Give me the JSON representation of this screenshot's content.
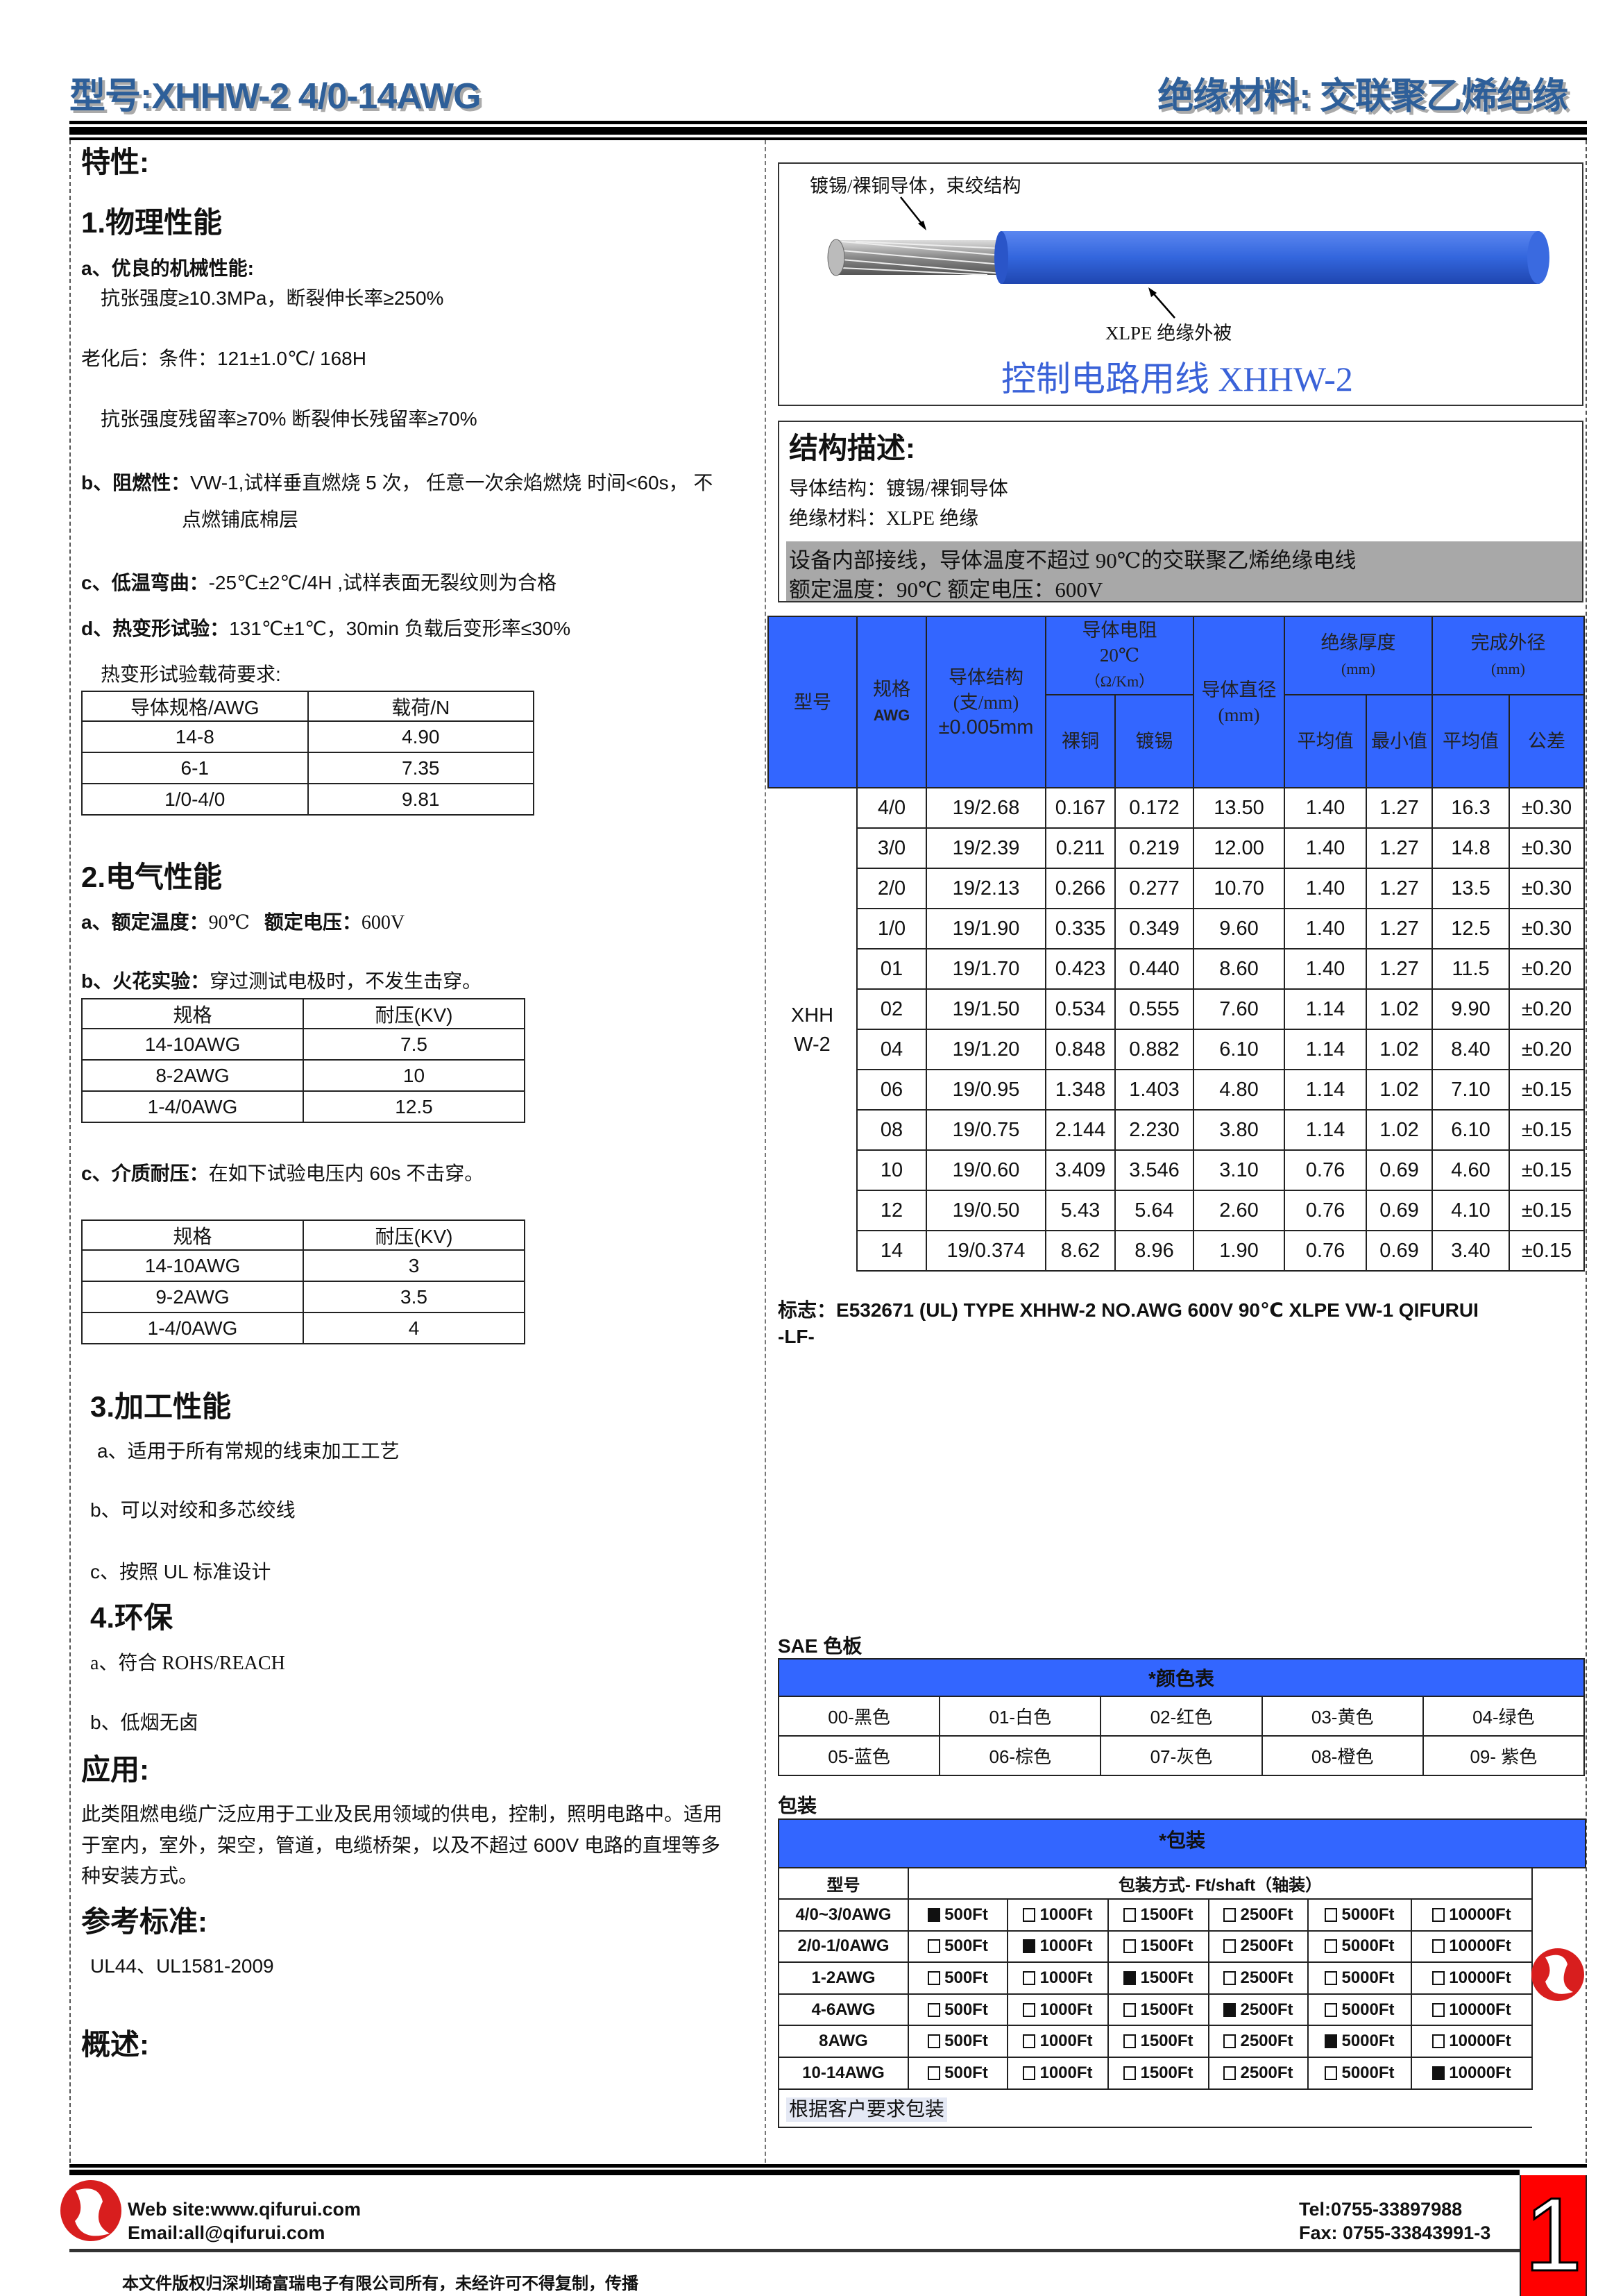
{
  "header": {
    "model": "型号:XHHW-2  4/0-14AWG",
    "material": "绝缘材料: 交联聚乙烯绝缘"
  },
  "left": {
    "features": "特性:",
    "s1": "1.物理性能",
    "s1a": "a、优良的机械性能:",
    "s1a1": "抗张强度≥10.3MPa，断裂伸长率≥250%",
    "s1a2": "老化后：条件：121±1.0℃/ 168H",
    "s1a3": "抗张强度残留率≥70%  断裂伸长残留率≥70%",
    "s1b_label": "b、阻燃性：",
    "s1b": "VW-1,试样垂直燃烧 5 次，  任意一次余焰燃烧  时间<60s，  不",
    "s1b2": "点燃铺底棉层",
    "s1c_label": "c、低温弯曲：",
    "s1c": "-25℃±2℃/4H ,试样表面无裂纹则为合格",
    "s1d_label": "d、热变形试验：",
    "s1d": "131℃±1℃，30min 负载后变形率≤30%",
    "s1d_req": "热变形试验载荷要求:",
    "heat_table": {
      "headers": [
        "导体规格/AWG",
        "载荷/N"
      ],
      "rows": [
        [
          "14-8",
          "4.90"
        ],
        [
          "6-1",
          "7.35"
        ],
        [
          "1/0-4/0",
          "9.81"
        ]
      ]
    },
    "s2": "2.电气性能",
    "s2a_label": "a、额定温度：",
    "s2a_val": "90℃",
    "s2a_label2": "额定电压：",
    "s2a_val2": "600V",
    "s2b_label": "b、火花实验：",
    "s2b": "穿过测试电极时，不发生击穿。",
    "spark_table": {
      "headers": [
        "规格",
        "耐压(KV)"
      ],
      "rows": [
        [
          "14-10AWG",
          "7.5"
        ],
        [
          "8-2AWG",
          "10"
        ],
        [
          "1-4/0AWG",
          "12.5"
        ]
      ]
    },
    "s2c_label": "c、介质耐压：",
    "s2c": "在如下试验电压内 60s 不击穿。",
    "diel_table": {
      "headers": [
        "规格",
        "耐压(KV)"
      ],
      "rows": [
        [
          "14-10AWG",
          "3"
        ],
        [
          "9-2AWG",
          "3.5"
        ],
        [
          "1-4/0AWG",
          "4"
        ]
      ]
    },
    "s3": "3.加工性能",
    "s3a": "a、适用于所有常规的线束加工工艺",
    "s3b": "b、可以对绞和多芯绞线",
    "s3c": "c、按照 UL 标准设计",
    "s4": "4.环保",
    "s4a": "a、符合 ROHS/REACH",
    "s4b": "b、低烟无卤",
    "app": "应用:",
    "app_lines": [
      "此类阻燃电缆广泛应用于工业及民用领域的供电，控制，照明电路中。适用",
      "于室内，室外，架空，管道，电缆桥架，以及不超过 600V 电路的直埋等多",
      "种安装方式。"
    ],
    "std": "参考标准:",
    "std_val": "UL44、UL1581-2009",
    "overview": "概述:"
  },
  "figure": {
    "conductor_label": "镀锡/裸铜导体，束绞结构",
    "jacket_label": "XLPE 绝缘外被",
    "caption": "控制电路用线  XHHW-2",
    "jacket_color": "#3366dd"
  },
  "structure": {
    "title": "结构描述:",
    "l1": "导体结构：镀锡/裸铜导体",
    "l2": "绝缘材料：XLPE 绝缘",
    "l3": "设备内部接线，导体温度不超过 90℃的交联聚乙烯绝缘电线",
    "l4": "额定温度：90℃  额定电压：600V"
  },
  "spec": {
    "h_model": "型号",
    "h_awg": "规格",
    "h_awg2": "AWG",
    "h_cond": "导体结构(支/mm)",
    "h_cond2": "±0.005mm",
    "h_res": "导体电阻",
    "h_res2": "20℃",
    "h_res3": "（Ω/Km）",
    "h_bare": "裸铜",
    "h_tin": "镀锡",
    "h_dia": "导体直径(mm)",
    "h_ins": "绝缘厚度",
    "h_ins2": "(mm)",
    "h_avg": "平均值",
    "h_min": "最小值",
    "h_od": "完成外径",
    "h_od2": "(mm)",
    "h_od_avg": "平均值",
    "h_tol": "公差",
    "model": "XHHW-2",
    "rows": [
      [
        "4/0",
        "19/2.68",
        "0.167",
        "0.172",
        "13.50",
        "1.40",
        "1.27",
        "16.3",
        "±0.30"
      ],
      [
        "3/0",
        "19/2.39",
        "0.211",
        "0.219",
        "12.00",
        "1.40",
        "1.27",
        "14.8",
        "±0.30"
      ],
      [
        "2/0",
        "19/2.13",
        "0.266",
        "0.277",
        "10.70",
        "1.40",
        "1.27",
        "13.5",
        "±0.30"
      ],
      [
        "1/0",
        "19/1.90",
        "0.335",
        "0.349",
        "9.60",
        "1.40",
        "1.27",
        "12.5",
        "±0.30"
      ],
      [
        "01",
        "19/1.70",
        "0.423",
        "0.440",
        "8.60",
        "1.40",
        "1.27",
        "11.5",
        "±0.20"
      ],
      [
        "02",
        "19/1.50",
        "0.534",
        "0.555",
        "7.60",
        "1.14",
        "1.02",
        "9.90",
        "±0.20"
      ],
      [
        "04",
        "19/1.20",
        "0.848",
        "0.882",
        "6.10",
        "1.14",
        "1.02",
        "8.40",
        "±0.20"
      ],
      [
        "06",
        "19/0.95",
        "1.348",
        "1.403",
        "4.80",
        "1.14",
        "1.02",
        "7.10",
        "±0.15"
      ],
      [
        "08",
        "19/0.75",
        "2.144",
        "2.230",
        "3.80",
        "1.14",
        "1.02",
        "6.10",
        "±0.15"
      ],
      [
        "10",
        "19/0.60",
        "3.409",
        "3.546",
        "3.10",
        "0.76",
        "0.69",
        "4.60",
        "±0.15"
      ],
      [
        "12",
        "19/0.50",
        "5.43",
        "5.64",
        "2.60",
        "0.76",
        "0.69",
        "4.10",
        "±0.15"
      ],
      [
        "14",
        "19/0.374",
        "8.62",
        "8.96",
        "1.90",
        "0.76",
        "0.69",
        "3.40",
        "±0.15"
      ]
    ]
  },
  "marking": {
    "label": "标志：",
    "text": "E532671 (UL) TYPE XHHW-2 NO.AWG 600V 90℃  XLPE VW-1 QIFURUI",
    "text2": "-LF-"
  },
  "colors": {
    "title": "SAE 色板",
    "header": "*颜色表",
    "rows": [
      [
        "00-黑色",
        "01-白色",
        "02-红色",
        "03-黄色",
        "04-绿色"
      ],
      [
        "05-蓝色",
        "06-棕色",
        "07-灰色",
        "08-橙色",
        "09- 紫色"
      ]
    ]
  },
  "packing": {
    "title": "包装",
    "header": "*包装",
    "col_model": "型号",
    "col_method": "包装方式- Ft/shaft（轴装）",
    "options": [
      "500Ft",
      "1000Ft",
      "1500Ft",
      "2500Ft",
      "5000Ft",
      "10000Ft"
    ],
    "rows": [
      {
        "model": "4/0~3/0AWG",
        "selected": 0
      },
      {
        "model": "2/0-1/0AWG",
        "selected": 1
      },
      {
        "model": "1-2AWG",
        "selected": 2
      },
      {
        "model": "4-6AWG",
        "selected": 3
      },
      {
        "model": "8AWG",
        "selected": 4
      },
      {
        "model": "10-14AWG",
        "selected": 5
      }
    ],
    "note": "根据客户要求包装"
  },
  "footer": {
    "web": "Web site:www.qifurui.com",
    "email": "Email:all@qifurui.com",
    "tel": "Tel:0755-33897988",
    "fax": "Fax: 0755-33843991-3",
    "page": "1",
    "copyright": "本文件版权归深圳琦富瑞电子有限公司所有，未经许可不得复制，传播",
    "accent": "#ff0000"
  }
}
